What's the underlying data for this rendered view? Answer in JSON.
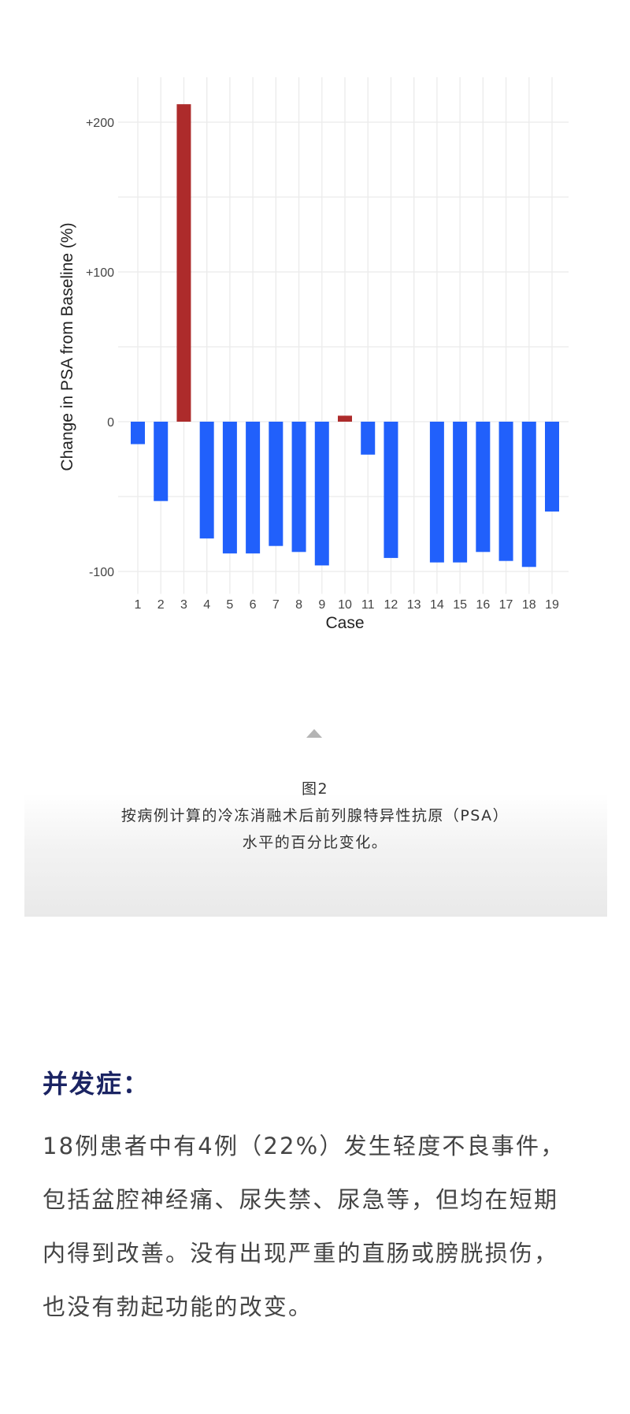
{
  "chart_data": {
    "type": "bar",
    "xlabel": "Case",
    "ylabel": "Change in PSA from Baseline (%)",
    "categories": [
      "1",
      "2",
      "3",
      "4",
      "5",
      "6",
      "7",
      "8",
      "9",
      "10",
      "11",
      "12",
      "13",
      "14",
      "15",
      "16",
      "17",
      "18",
      "19"
    ],
    "values": [
      -15,
      -53,
      212,
      -78,
      -88,
      -88,
      -83,
      -87,
      -96,
      4,
      -22,
      -91,
      0,
      -94,
      -94,
      -87,
      -93,
      -97,
      -60
    ],
    "ylim": [
      -115,
      230
    ],
    "yticks": [
      {
        "value": 200,
        "label": "+200"
      },
      {
        "value": 100,
        "label": "+100"
      },
      {
        "value": 0,
        "label": "0"
      },
      {
        "value": -100,
        "label": "-100"
      }
    ],
    "grid": true,
    "colors": {
      "increase": "#ad2b2b",
      "decrease": "#2160fb",
      "grid": "#ebebeb"
    }
  },
  "caption": {
    "figure_label": "图2",
    "line1": "按病例计算的冷冻消融术后前列腺特异性抗原（PSA）",
    "line2": "水平的百分比变化。"
  },
  "section": {
    "heading": "并发症：",
    "lines": [
      "18例患者中有4例（22%）发生轻度不良事件，",
      "包括盆腔神经痛、尿失禁、尿急等，但均在短期",
      "内得到改善。没有出现严重的直肠或膀胱损伤，",
      "也没有勃起功能的改变。"
    ]
  }
}
